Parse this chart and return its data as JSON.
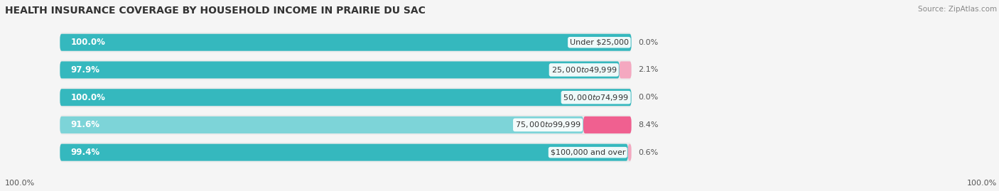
{
  "title": "HEALTH INSURANCE COVERAGE BY HOUSEHOLD INCOME IN PRAIRIE DU SAC",
  "source": "Source: ZipAtlas.com",
  "categories": [
    "Under $25,000",
    "$25,000 to $49,999",
    "$50,000 to $74,999",
    "$75,000 to $99,999",
    "$100,000 and over"
  ],
  "with_coverage": [
    100.0,
    97.9,
    100.0,
    91.6,
    99.4
  ],
  "without_coverage": [
    0.0,
    2.1,
    0.0,
    8.4,
    0.6
  ],
  "color_with": "#35b8be",
  "color_with_light": "#7dd4d8",
  "color_without_dark": "#f06090",
  "color_without_light": "#f4a8c0",
  "color_bar_bg": "#ebebeb",
  "color_bg": "#f7f7f7",
  "color_row_bg": "#f0f0f0",
  "title_fontsize": 10,
  "label_fontsize": 8.5,
  "cat_fontsize": 8,
  "tick_fontsize": 8,
  "legend_fontsize": 8.5,
  "source_fontsize": 7.5,
  "without_pct_fontsize": 8
}
